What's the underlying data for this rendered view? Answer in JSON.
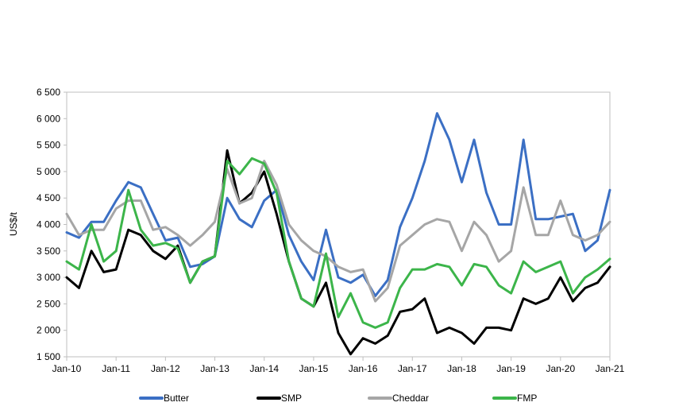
{
  "chart_data": {
    "type": "line",
    "title": "",
    "xlabel": "",
    "ylabel": "US$/t",
    "ylim": [
      1500,
      6500
    ],
    "yticks": [
      1500,
      2000,
      2500,
      3000,
      3500,
      4000,
      4500,
      5000,
      5500,
      6000,
      6500
    ],
    "ytick_labels": [
      "1 500",
      "2 000",
      "2 500",
      "3 000",
      "3 500",
      "4 000",
      "4 500",
      "5 000",
      "5 500",
      "6 000",
      "6 500"
    ],
    "xlim": [
      "2010-01",
      "2021-01"
    ],
    "xtick_labels": [
      "Jan-10",
      "Jan-11",
      "Jan-12",
      "Jan-13",
      "Jan-14",
      "Jan-15",
      "Jan-16",
      "Jan-17",
      "Jan-18",
      "Jan-19",
      "Jan-20",
      "Jan-21"
    ],
    "grid": false,
    "legend_position": "bottom",
    "x": [
      "2010-01",
      "2010-04",
      "2010-07",
      "2010-10",
      "2011-01",
      "2011-04",
      "2011-07",
      "2011-10",
      "2012-01",
      "2012-04",
      "2012-07",
      "2012-10",
      "2013-01",
      "2013-04",
      "2013-07",
      "2013-10",
      "2014-01",
      "2014-04",
      "2014-07",
      "2014-10",
      "2015-01",
      "2015-04",
      "2015-07",
      "2015-10",
      "2016-01",
      "2016-04",
      "2016-07",
      "2016-10",
      "2017-01",
      "2017-04",
      "2017-07",
      "2017-10",
      "2018-01",
      "2018-04",
      "2018-07",
      "2018-10",
      "2019-01",
      "2019-04",
      "2019-07",
      "2019-10",
      "2020-01",
      "2020-04",
      "2020-07",
      "2020-10",
      "2021-01"
    ],
    "series": [
      {
        "name": "Butter",
        "color": "#3b6fc4",
        "values": [
          3850,
          3750,
          4050,
          4050,
          4450,
          4800,
          4700,
          4200,
          3700,
          3750,
          3200,
          3250,
          3400,
          4500,
          4100,
          3950,
          4450,
          4650,
          3800,
          3300,
          2950,
          3900,
          3000,
          2900,
          3050,
          2650,
          2950,
          3950,
          4500,
          5200,
          6100,
          5600,
          4800,
          5600,
          4600,
          4000,
          4000,
          5600,
          4100,
          4100,
          4150,
          4200,
          3500,
          3700,
          4650
        ]
      },
      {
        "name": "SMP",
        "color": "#000000",
        "values": [
          3000,
          2800,
          3500,
          3100,
          3150,
          3900,
          3800,
          3500,
          3350,
          3600,
          2900,
          3300,
          3400,
          5400,
          4400,
          4600,
          5000,
          4200,
          3300,
          2600,
          2450,
          2900,
          1950,
          1550,
          1850,
          1750,
          1900,
          2350,
          2400,
          2600,
          1950,
          2050,
          1950,
          1750,
          2050,
          2050,
          2000,
          2600,
          2500,
          2600,
          3000,
          2550,
          2800,
          2900,
          3200
        ]
      },
      {
        "name": "Cheddar",
        "color": "#a6a6a6",
        "values": [
          4200,
          3800,
          3900,
          3900,
          4300,
          4450,
          4450,
          3900,
          3950,
          3800,
          3600,
          3800,
          4050,
          5050,
          4400,
          4500,
          5200,
          4750,
          4000,
          3700,
          3500,
          3400,
          3200,
          3100,
          3150,
          2550,
          2800,
          3600,
          3800,
          4000,
          4100,
          4050,
          3500,
          4050,
          3800,
          3300,
          3500,
          4700,
          3800,
          3800,
          4450,
          3800,
          3700,
          3800,
          4050
        ]
      },
      {
        "name": "FMP",
        "color": "#3cb54a",
        "values": [
          3300,
          3150,
          4000,
          3300,
          3500,
          4650,
          3900,
          3600,
          3650,
          3550,
          2900,
          3300,
          3400,
          5200,
          4950,
          5250,
          5150,
          4600,
          3300,
          2600,
          2450,
          3450,
          2250,
          2700,
          2150,
          2050,
          2150,
          2800,
          3150,
          3150,
          3250,
          3200,
          2850,
          3250,
          3200,
          2850,
          2700,
          3300,
          3100,
          3200,
          3300,
          2700,
          3000,
          3150,
          3350
        ]
      }
    ]
  }
}
